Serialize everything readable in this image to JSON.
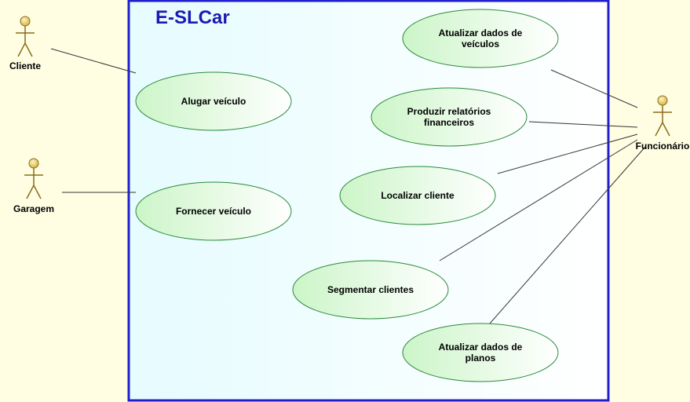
{
  "system": {
    "title": "E-SLCar"
  },
  "colors": {
    "system_border": "#1f1fd0",
    "system_title": "#1a1ab4",
    "system_fill_left": "#e6fcff",
    "system_fill_right": "#ffffff",
    "usecase_fill_left": "#ccf5c8",
    "usecase_fill_right": "#ffffff",
    "usecase_border": "#2a8a3a",
    "actor_fill": "#d8b64a",
    "actor_stroke": "#8a6d1a"
  },
  "actors": [
    {
      "id": "cliente",
      "label": "Cliente"
    },
    {
      "id": "garagem",
      "label": "Garagem"
    },
    {
      "id": "funcionario",
      "label": "Funcionário"
    }
  ],
  "use_cases": [
    {
      "id": "uc1",
      "lines": [
        "Alugar veículo"
      ]
    },
    {
      "id": "uc2",
      "lines": [
        "Fornecer veículo"
      ]
    },
    {
      "id": "uc3",
      "lines": [
        "Atualizar dados de",
        "veículos"
      ]
    },
    {
      "id": "uc4",
      "lines": [
        "Produzir relatórios",
        "financeiros"
      ]
    },
    {
      "id": "uc5",
      "lines": [
        "Localizar cliente"
      ]
    },
    {
      "id": "uc6",
      "lines": [
        "Segmentar clientes"
      ]
    },
    {
      "id": "uc7",
      "lines": [
        "Atualizar dados de",
        "planos"
      ]
    }
  ],
  "associations": [
    {
      "actor": "cliente",
      "use_case": "uc1"
    },
    {
      "actor": "garagem",
      "use_case": "uc2"
    },
    {
      "actor": "funcionario",
      "use_case": "uc3"
    },
    {
      "actor": "funcionario",
      "use_case": "uc4"
    },
    {
      "actor": "funcionario",
      "use_case": "uc5"
    },
    {
      "actor": "funcionario",
      "use_case": "uc6"
    },
    {
      "actor": "funcionario",
      "use_case": "uc7"
    }
  ]
}
